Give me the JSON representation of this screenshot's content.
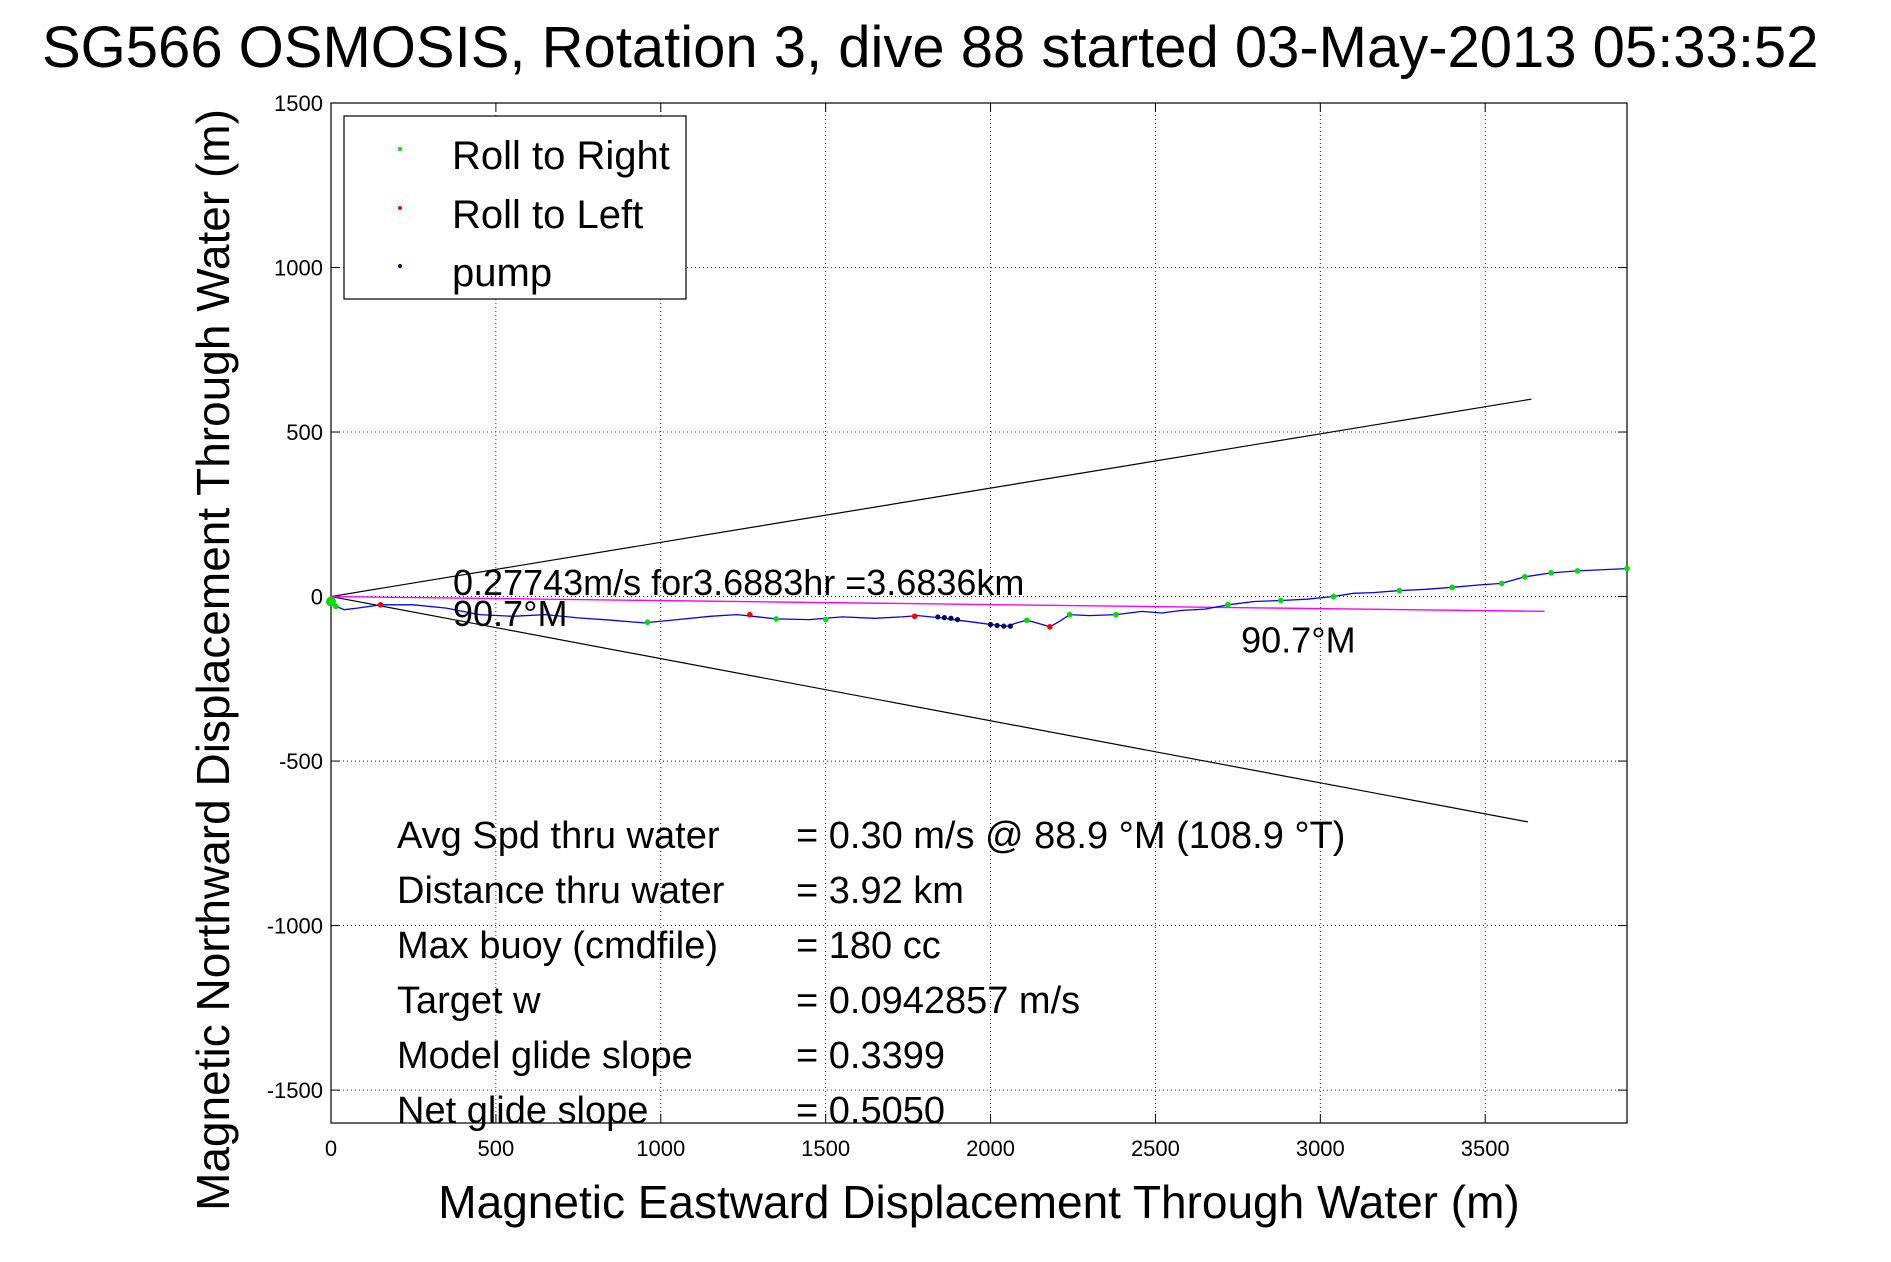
{
  "chart_data": {
    "type": "line",
    "title": "SG566 OSMOSIS, Rotation 3, dive 88 started 03-May-2013 05:33:52",
    "xlabel": "Magnetic Eastward Displacement Through Water (m)",
    "ylabel": "Magnetic Northward Displacement Through Water (m)",
    "xlim": [
      0,
      3930
    ],
    "ylim": [
      -1600,
      1500
    ],
    "xticks": [
      0,
      500,
      1000,
      1500,
      2000,
      2500,
      3000,
      3500
    ],
    "yticks": [
      -1500,
      -1000,
      -500,
      0,
      500,
      1000,
      1500
    ],
    "grid": true,
    "legend_position": "top-left",
    "legend": [
      {
        "label": "Roll to Right",
        "color": "#00dd00"
      },
      {
        "label": "Roll to Left",
        "color": "#ff0000"
      },
      {
        "label": "pump",
        "color": "#000066"
      }
    ],
    "track": {
      "color": "#0000ff",
      "x": [
        0,
        15,
        40,
        80,
        150,
        250,
        350,
        450,
        550,
        650,
        750,
        850,
        950,
        1050,
        1150,
        1230,
        1280,
        1350,
        1450,
        1550,
        1650,
        1730,
        1780,
        1850,
        1900,
        1950,
        2000,
        2050,
        2080,
        2110,
        2140,
        2180,
        2210,
        2240,
        2300,
        2380,
        2460,
        2520,
        2580,
        2650,
        2720,
        2800,
        2880,
        2960,
        3040,
        3100,
        3160,
        3240,
        3320,
        3400,
        3480,
        3550,
        3620,
        3700,
        3780,
        3860,
        3930
      ],
      "y": [
        0,
        -30,
        -40,
        -35,
        -25,
        -25,
        -35,
        -55,
        -60,
        -55,
        -65,
        -72,
        -80,
        -70,
        -60,
        -55,
        -60,
        -68,
        -70,
        -62,
        -66,
        -62,
        -58,
        -65,
        -72,
        -78,
        -85,
        -90,
        -80,
        -72,
        -80,
        -92,
        -75,
        -55,
        -58,
        -55,
        -45,
        -50,
        -42,
        -38,
        -25,
        -15,
        -12,
        -8,
        0,
        10,
        12,
        18,
        22,
        28,
        35,
        40,
        60,
        72,
        78,
        82,
        85
      ]
    },
    "markers": {
      "roll_right": {
        "x": [
          15,
          960,
          1350,
          1500,
          2110,
          2240,
          2380,
          2720,
          2880,
          3040,
          3240,
          3400,
          3550,
          3620,
          3700,
          3780,
          3930
        ],
        "y": [
          -30,
          -78,
          -68,
          -70,
          -72,
          -55,
          -55,
          -25,
          -12,
          0,
          18,
          28,
          40,
          60,
          72,
          78,
          85
        ]
      },
      "roll_left": {
        "x": [
          150,
          1270,
          1770,
          2180
        ],
        "y": [
          -25,
          -55,
          -60,
          -92
        ]
      },
      "pump": {
        "x": [
          1840,
          1860,
          1880,
          1900,
          2000,
          2020,
          2040,
          2060
        ],
        "y": [
          -62,
          -64,
          -66,
          -70,
          -85,
          -88,
          -90,
          -90
        ]
      }
    },
    "direct_line": {
      "color": "#ff00ff",
      "x": [
        0,
        3680
      ],
      "y": [
        0,
        -45
      ]
    },
    "cone_lines": [
      {
        "x": [
          0,
          3640
        ],
        "y": [
          0,
          600
        ]
      },
      {
        "x": [
          0,
          3630
        ],
        "y": [
          0,
          -685
        ]
      }
    ],
    "annotations": [
      {
        "text": "0.27743m/s for3.6883hr =3.6836km",
        "x": 370,
        "y": 5
      },
      {
        "text": "90.7°M",
        "x": 370,
        "y": -90
      },
      {
        "text": "90.7°M",
        "x": 2760,
        "y": -170
      }
    ],
    "stats": [
      {
        "label": "Avg Spd thru water",
        "value": "=  0.30 m/s @  88.9 °M (108.9 °T)"
      },
      {
        "label": "Distance thru water",
        "value": "=  3.92 km"
      },
      {
        "label": "Max buoy (cmdfile)",
        "value": "= 180 cc"
      },
      {
        "label": "Target w",
        "value": "= 0.0942857 m/s"
      },
      {
        "label": "Model glide slope",
        "value": "= 0.3399"
      },
      {
        "label": "Net glide slope",
        "value": "= 0.5050"
      }
    ]
  }
}
